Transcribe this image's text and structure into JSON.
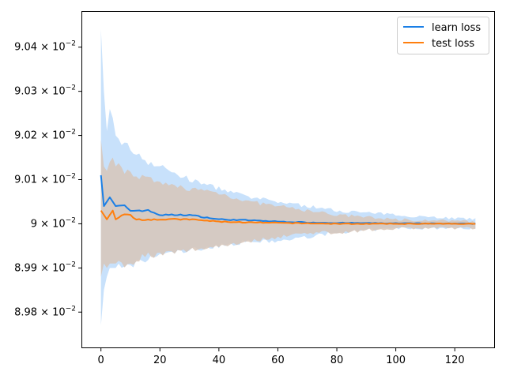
{
  "chart_data": {
    "type": "line",
    "title": "",
    "xlabel": "",
    "ylabel": "",
    "xlim": [
      -6.35,
      133.35
    ],
    "ylim": [
      0.08972,
      0.09048
    ],
    "x_ticks": [
      0,
      20,
      40,
      60,
      80,
      100,
      120
    ],
    "x_tick_labels": [
      "0",
      "20",
      "40",
      "60",
      "80",
      "100",
      "120"
    ],
    "y_ticks": [
      0.0898,
      0.0899,
      0.09,
      0.0901,
      0.0902,
      0.0903,
      0.0904
    ],
    "y_tick_labels": [
      {
        "mantissa": "8.98",
        "base": "10",
        "exp": "−2"
      },
      {
        "mantissa": "8.99",
        "base": "10",
        "exp": "−2"
      },
      {
        "mantissa": "9",
        "base": "10",
        "exp": "−2"
      },
      {
        "mantissa": "9.01",
        "base": "10",
        "exp": "−2"
      },
      {
        "mantissa": "9.02",
        "base": "10",
        "exp": "−2"
      },
      {
        "mantissa": "9.03",
        "base": "10",
        "exp": "−2"
      },
      {
        "mantissa": "9.04",
        "base": "10",
        "exp": "−2"
      }
    ],
    "grid": false,
    "legend_position": "top-right",
    "x_range": [
      0,
      127
    ],
    "series": [
      {
        "name": "learn loss",
        "color": "#1a7fe6",
        "band_color": "#c8e1fb",
        "keypoints": {
          "x": [
            0,
            1,
            2,
            3,
            4,
            5,
            8,
            10,
            12,
            16,
            20,
            30,
            40,
            50,
            60,
            70,
            80,
            100,
            127
          ],
          "y": [
            0.09011,
            0.09004,
            0.09005,
            0.09006,
            0.09005,
            0.09004,
            0.09004,
            0.09003,
            0.09003,
            0.09003,
            0.09002,
            0.09002,
            0.09001,
            0.090008,
            0.090005,
            0.090003,
            0.090002,
            0.090001,
            0.09
          ],
          "upper": [
            0.09044,
            0.0903,
            0.09021,
            0.09026,
            0.09024,
            0.0902,
            0.09018,
            0.09017,
            0.09016,
            0.09014,
            0.09013,
            0.0901,
            0.09008,
            0.09006,
            0.09005,
            0.09004,
            0.09003,
            0.09002,
            0.09001
          ],
          "lower": [
            0.08977,
            0.08985,
            0.08988,
            0.0899,
            0.0899,
            0.0899,
            0.0899,
            0.0899,
            0.08991,
            0.08992,
            0.08993,
            0.08994,
            0.08995,
            0.08996,
            0.08996,
            0.08997,
            0.08998,
            0.08999,
            0.08999
          ]
        }
      },
      {
        "name": "test loss",
        "color": "#ff7f0e",
        "band_color": "#d7c6b8",
        "keypoints": {
          "x": [
            0,
            1,
            2,
            3,
            4,
            5,
            8,
            10,
            12,
            16,
            20,
            30,
            40,
            50,
            60,
            70,
            80,
            100,
            127
          ],
          "y": [
            0.09003,
            0.09002,
            0.09001,
            0.09002,
            0.09003,
            0.09001,
            0.09002,
            0.09002,
            0.09001,
            0.09001,
            0.09001,
            0.09001,
            0.090005,
            0.090003,
            0.090002,
            0.090001,
            0.09,
            0.09,
            0.09
          ],
          "upper": [
            0.09019,
            0.09013,
            0.09012,
            0.09014,
            0.09015,
            0.09013,
            0.09012,
            0.09012,
            0.09011,
            0.0901,
            0.09009,
            0.09008,
            0.09007,
            0.09005,
            0.09004,
            0.09003,
            0.09002,
            0.09001,
            0.090005
          ],
          "lower": [
            0.08988,
            0.08991,
            0.0899,
            0.08991,
            0.08991,
            0.08991,
            0.08991,
            0.08991,
            0.08992,
            0.08993,
            0.08993,
            0.08994,
            0.08995,
            0.08996,
            0.08997,
            0.08998,
            0.08998,
            0.08999,
            0.08999
          ]
        }
      }
    ]
  }
}
